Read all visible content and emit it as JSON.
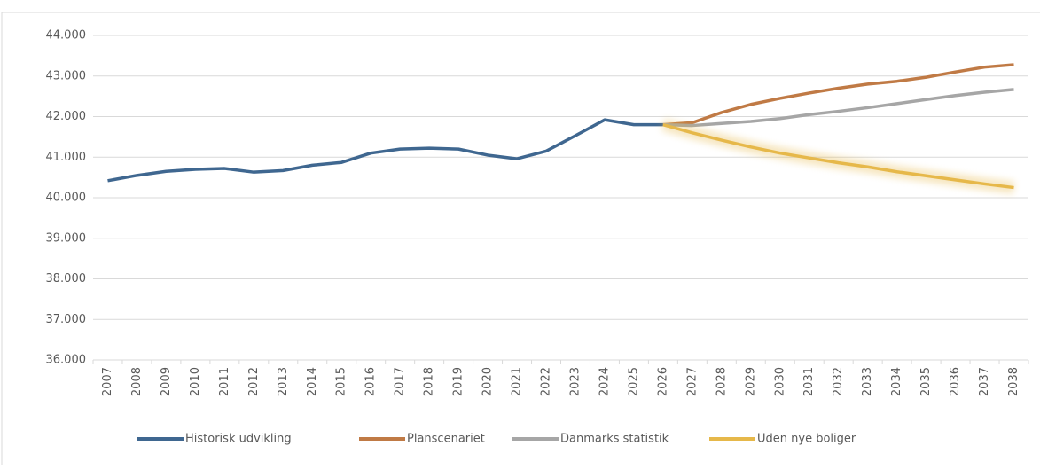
{
  "chart_data": {
    "type": "line",
    "categories": [
      "2007",
      "2008",
      "2009",
      "2010",
      "2011",
      "2012",
      "2013",
      "2014",
      "2015",
      "2016",
      "2017",
      "2018",
      "2019",
      "2020",
      "2021",
      "2022",
      "2023",
      "2024",
      "2025",
      "2026",
      "2027",
      "2028",
      "2029",
      "2030",
      "2031",
      "2032",
      "2033",
      "2034",
      "2035",
      "2036",
      "2037",
      "2038"
    ],
    "series": [
      {
        "name": "Historisk udvikling",
        "color": "#3f6790",
        "values": [
          40420,
          40550,
          40650,
          40700,
          40720,
          40630,
          40670,
          40800,
          40870,
          41100,
          41200,
          41220,
          41200,
          41050,
          40960,
          41150,
          41530,
          41920,
          41800,
          41800,
          null,
          null,
          null,
          null,
          null,
          null,
          null,
          null,
          null,
          null,
          null,
          null
        ]
      },
      {
        "name": "Planscenariet",
        "color": "#c07a45",
        "values": [
          null,
          null,
          null,
          null,
          null,
          null,
          null,
          null,
          null,
          null,
          null,
          null,
          null,
          null,
          null,
          null,
          null,
          null,
          null,
          41800,
          41850,
          42100,
          42300,
          42450,
          42580,
          42700,
          42800,
          42870,
          42970,
          43100,
          43220,
          43280
        ]
      },
      {
        "name": "Danmarks statistik",
        "color": "#a6a6a6",
        "values": [
          null,
          null,
          null,
          null,
          null,
          null,
          null,
          null,
          null,
          null,
          null,
          null,
          null,
          null,
          null,
          null,
          null,
          null,
          null,
          41800,
          41780,
          41830,
          41880,
          41950,
          42050,
          42130,
          42220,
          42320,
          42420,
          42520,
          42600,
          42670
        ]
      },
      {
        "name": "Uden nye boliger",
        "color": "#e6b84a",
        "values": [
          null,
          null,
          null,
          null,
          null,
          null,
          null,
          null,
          null,
          null,
          null,
          null,
          null,
          null,
          null,
          null,
          null,
          null,
          null,
          41800,
          41600,
          41420,
          41250,
          41100,
          40980,
          40860,
          40760,
          40640,
          40540,
          40440,
          40340,
          40250
        ]
      }
    ],
    "ylim": [
      36000,
      44000
    ],
    "yticks": [
      {
        "value": 36000,
        "label": "36.000"
      },
      {
        "value": 37000,
        "label": "37.000"
      },
      {
        "value": 38000,
        "label": "38.000"
      },
      {
        "value": 39000,
        "label": "39.000"
      },
      {
        "value": 40000,
        "label": "40.000"
      },
      {
        "value": 41000,
        "label": "41.000"
      },
      {
        "value": 42000,
        "label": "42.000"
      },
      {
        "value": 43000,
        "label": "43.000"
      },
      {
        "value": 44000,
        "label": "44.000"
      }
    ],
    "grid": true
  }
}
